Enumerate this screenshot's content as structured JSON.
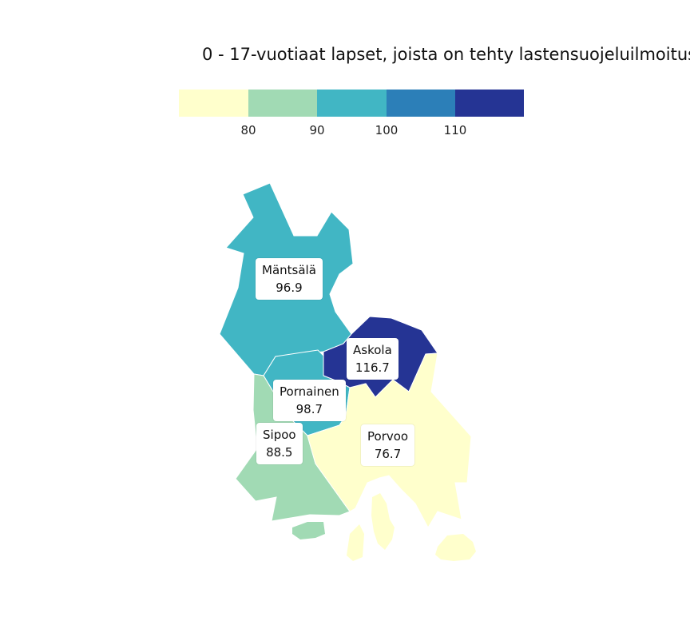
{
  "title": "0 - 17-vuotiaat lapset, joista on tehty lastensuojeluilmoitus",
  "legend": {
    "ticks": [
      "80",
      "90",
      "100",
      "110"
    ],
    "colors": [
      "#ffffcc",
      "#a1dab4",
      "#41b6c4",
      "#2c7fb8",
      "#253494"
    ]
  },
  "regions": [
    {
      "name": "Mäntsälä",
      "value": "96.9",
      "color": "#41b6c4"
    },
    {
      "name": "Askola",
      "value": "116.7",
      "color": "#253494"
    },
    {
      "name": "Pornainen",
      "value": "98.7",
      "color": "#41b6c4"
    },
    {
      "name": "Sipoo",
      "value": "88.5",
      "color": "#a1dab4"
    },
    {
      "name": "Porvoo",
      "value": "76.7",
      "color": "#ffffcc"
    }
  ]
}
